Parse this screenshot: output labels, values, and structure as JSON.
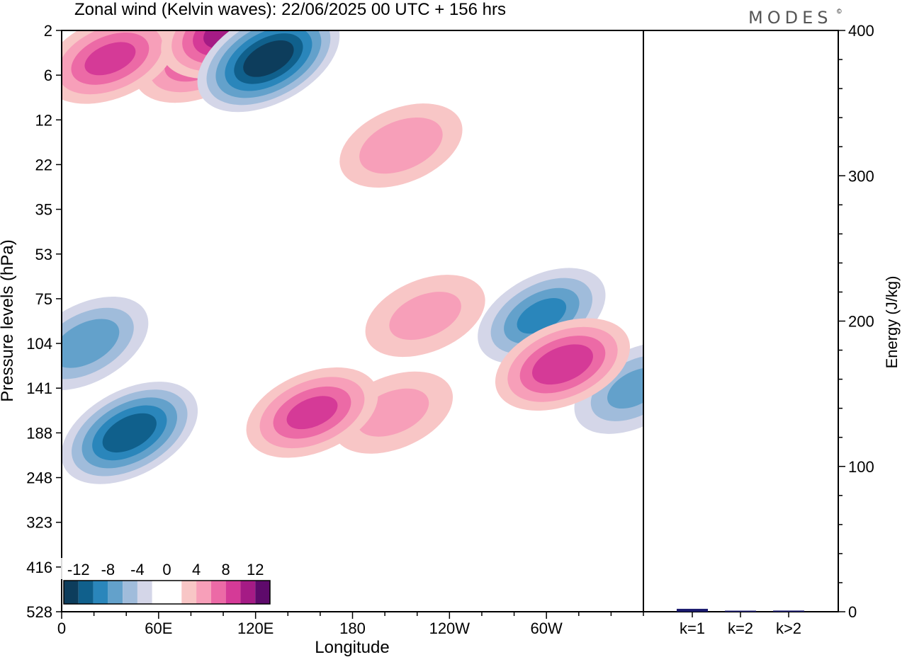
{
  "title": "Zonal wind (Kelvin waves):  22/06/2025  00 UTC  + 156 hrs",
  "brand": "MODES",
  "brand_mark": "©",
  "chart_data": [
    {
      "type": "heatmap",
      "title": "Zonal wind (Kelvin waves):  22/06/2025  00 UTC  + 156 hrs",
      "xlabel": "Longitude",
      "ylabel": "Pressure levels (hPa)",
      "x_ticks": [
        "0",
        "60E",
        "120E",
        "180",
        "120W",
        "60W"
      ],
      "x_range_deg": [
        0,
        360
      ],
      "y_ticks": [
        "2",
        "6",
        "12",
        "22",
        "35",
        "53",
        "75",
        "104",
        "141",
        "188",
        "248",
        "323",
        "416",
        "528"
      ],
      "y_order": "top-to-bottom",
      "colorbar": {
        "labels": [
          "-12",
          "-8",
          "-4",
          "0",
          "4",
          "8",
          "12"
        ],
        "levels": [
          -14,
          -12,
          -10,
          -8,
          -6,
          -4,
          -2,
          0,
          2,
          4,
          6,
          8,
          10,
          12,
          14
        ],
        "colors": [
          "#0d3d5c",
          "#10608c",
          "#2a86bb",
          "#63a1cb",
          "#a0bcdb",
          "#d4d6e8",
          "#ffffff",
          "#ffffff",
          "#f8c6c6",
          "#f79fb9",
          "#ec6aa6",
          "#d53a97",
          "#a51b85",
          "#5e0a6b"
        ]
      },
      "features": [
        {
          "sign": "negative",
          "lon": 42,
          "level": 188,
          "peak": -11
        },
        {
          "sign": "negative",
          "lon": 128,
          "level": 4,
          "peak": -13
        },
        {
          "sign": "negative",
          "lon": 15,
          "level": 104,
          "peak": -7
        },
        {
          "sign": "negative",
          "lon": 297,
          "level": 85,
          "peak": -8
        },
        {
          "sign": "negative",
          "lon": 355,
          "level": 141,
          "peak": -6
        },
        {
          "sign": "positive",
          "lon": 105,
          "level": 2,
          "peak": 11
        },
        {
          "sign": "positive",
          "lon": 30,
          "level": 4,
          "peak": 8
        },
        {
          "sign": "positive",
          "lon": 85,
          "level": 4,
          "peak": 7
        },
        {
          "sign": "positive",
          "lon": 155,
          "level": 165,
          "peak": 8
        },
        {
          "sign": "positive",
          "lon": 310,
          "level": 120,
          "peak": 9
        },
        {
          "sign": "positive",
          "lon": 210,
          "level": 17,
          "peak": 5
        },
        {
          "sign": "positive",
          "lon": 225,
          "level": 85,
          "peak": 4
        },
        {
          "sign": "positive",
          "lon": 205,
          "level": 165,
          "peak": 4
        }
      ]
    },
    {
      "type": "bar",
      "categories": [
        "k=1",
        "k=2",
        "k>2"
      ],
      "values": [
        2,
        0.5,
        0.8
      ],
      "ylabel": "Energy (J/kg)",
      "ylim": [
        0,
        400
      ],
      "y_ticks": [
        "0",
        "100",
        "200",
        "300",
        "400"
      ],
      "bar_color": "#1a1a6e"
    }
  ]
}
